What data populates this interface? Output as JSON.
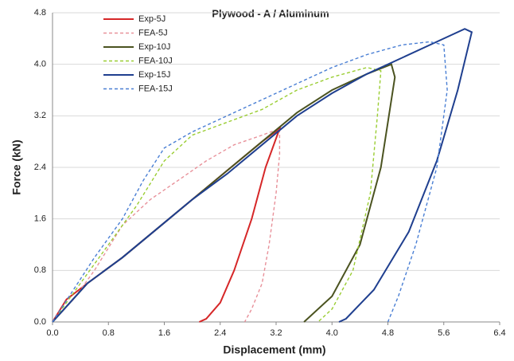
{
  "chart_data": {
    "type": "line",
    "title": "Plywood - A / Aluminum",
    "x_label": "Displacement (mm)",
    "y_label": "Force  (kN)",
    "xlim": [
      0,
      6.4
    ],
    "ylim": [
      0,
      4.8
    ],
    "xticks": [
      {
        "value": 0,
        "label": "0.0"
      },
      0.8,
      1.6,
      2.4,
      3.2,
      {
        "value": 4,
        "label": "4.0"
      },
      4.8,
      5.6,
      6.4
    ],
    "yticks": [
      {
        "value": 0,
        "label": "0.0"
      },
      0.8,
      1.6,
      2.4,
      3.2,
      {
        "value": 4,
        "label": "4.0"
      },
      4.8
    ],
    "grid": true,
    "legend": "upper-left",
    "series": [
      {
        "name": "Exp-5J",
        "color": "#d62728",
        "dashed": false,
        "x": [
          0,
          0.2,
          0.5,
          1.0,
          1.5,
          2.0,
          2.5,
          3.0,
          3.25,
          3.05,
          2.85,
          2.6,
          2.4,
          2.2,
          2.1
        ],
        "values": [
          0,
          0.35,
          0.6,
          1.0,
          1.45,
          1.9,
          2.35,
          2.8,
          3.0,
          2.4,
          1.6,
          0.8,
          0.3,
          0.05,
          0
        ]
      },
      {
        "name": "FEA-5J",
        "color": "#e8919a",
        "dashed": true,
        "x": [
          0,
          0.3,
          0.6,
          1.0,
          1.4,
          1.8,
          2.2,
          2.6,
          3.0,
          3.25,
          3.25,
          3.2,
          3.1,
          3.0,
          2.85,
          2.75
        ],
        "values": [
          0,
          0.35,
          0.8,
          1.5,
          1.9,
          2.2,
          2.5,
          2.75,
          2.9,
          3.0,
          2.6,
          2.0,
          1.2,
          0.6,
          0.2,
          0
        ]
      },
      {
        "name": "Exp-10J",
        "color": "#4b5320",
        "dashed": false,
        "x": [
          0,
          0.5,
          1.0,
          1.5,
          2.0,
          2.5,
          3.0,
          3.5,
          4.0,
          4.5,
          4.85,
          4.9,
          4.7,
          4.4,
          4.0,
          3.6
        ],
        "values": [
          0,
          0.6,
          1.0,
          1.45,
          1.9,
          2.35,
          2.8,
          3.25,
          3.6,
          3.85,
          4.0,
          3.8,
          2.4,
          1.2,
          0.4,
          0
        ]
      },
      {
        "name": "FEA-10J",
        "color": "#9acd32",
        "dashed": true,
        "x": [
          0,
          0.4,
          0.8,
          1.2,
          1.6,
          2.0,
          2.5,
          3.0,
          3.5,
          4.0,
          4.5,
          4.7,
          4.65,
          4.55,
          4.3,
          4.0,
          3.8
        ],
        "values": [
          0,
          0.6,
          1.2,
          1.8,
          2.5,
          2.9,
          3.1,
          3.3,
          3.6,
          3.8,
          3.95,
          3.9,
          3.2,
          2.0,
          0.8,
          0.2,
          0
        ]
      },
      {
        "name": "Exp-15J",
        "color": "#1f3f8f",
        "dashed": false,
        "x": [
          0,
          0.5,
          1.0,
          1.5,
          2.0,
          2.5,
          3.0,
          3.5,
          4.0,
          4.5,
          5.0,
          5.5,
          5.9,
          6.0,
          5.8,
          5.5,
          5.1,
          4.6,
          4.2,
          4.1
        ],
        "values": [
          0,
          0.6,
          1.0,
          1.45,
          1.9,
          2.3,
          2.75,
          3.2,
          3.55,
          3.85,
          4.1,
          4.35,
          4.55,
          4.5,
          3.6,
          2.5,
          1.4,
          0.5,
          0.05,
          0
        ]
      },
      {
        "name": "FEA-15J",
        "color": "#4a7fd4",
        "dashed": true,
        "x": [
          0,
          0.3,
          0.6,
          1.0,
          1.3,
          1.6,
          2.0,
          2.5,
          3.0,
          3.5,
          4.0,
          4.5,
          5.0,
          5.4,
          5.6,
          5.65,
          5.5,
          5.2,
          4.95,
          4.8
        ],
        "values": [
          0,
          0.5,
          1.0,
          1.6,
          2.2,
          2.7,
          2.95,
          3.2,
          3.45,
          3.7,
          3.95,
          4.15,
          4.3,
          4.35,
          4.3,
          3.6,
          2.4,
          1.2,
          0.4,
          0
        ]
      }
    ]
  }
}
